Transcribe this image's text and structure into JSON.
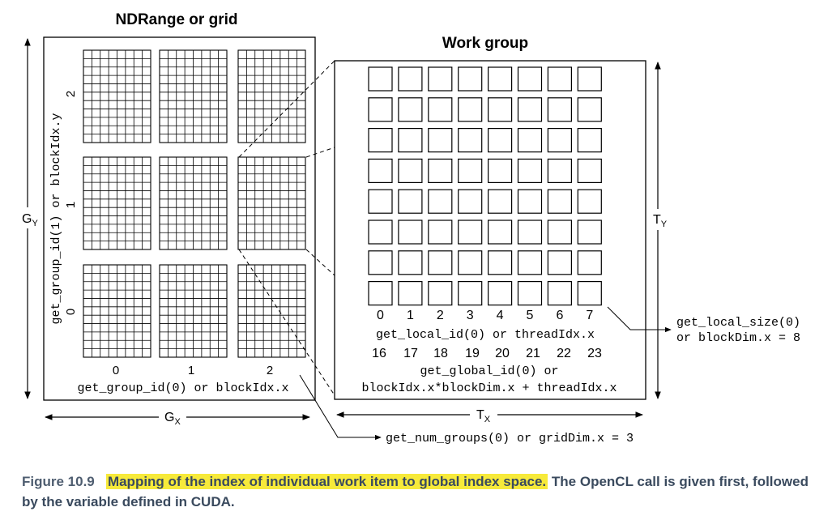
{
  "grid": {
    "title": "NDRange or grid",
    "axis_y_label": "get_group_id(1) or blockIdx.y",
    "row_labels": [
      "0",
      "1",
      "2"
    ],
    "col_labels": [
      "0",
      "1",
      "2"
    ],
    "axis_x_label": "get_group_id(0) or blockIdx.x",
    "gx_label": "G",
    "gx_sub": "X",
    "gy_label": "G",
    "gy_sub": "Y"
  },
  "work_group": {
    "title": "Work group",
    "local_ids": [
      "0",
      "1",
      "2",
      "3",
      "4",
      "5",
      "6",
      "7"
    ],
    "local_id_label": "get_local_id(0) or threadIdx.x",
    "global_ids": [
      "16",
      "17",
      "18",
      "19",
      "20",
      "21",
      "22",
      "23"
    ],
    "global_id_label_1": "get_global_id(0) or",
    "global_id_label_2": "blockIdx.x*blockDim.x + threadIdx.x",
    "tx_label": "T",
    "tx_sub": "X",
    "ty_label": "T",
    "ty_sub": "Y",
    "cells_per_row": 8,
    "cells_per_col": 8
  },
  "annotations": {
    "local_size_1": "get_local_size(0)",
    "local_size_2": "or blockDim.x = 8",
    "num_groups": "get_num_groups(0) or gridDim.x = 3"
  },
  "caption": {
    "figure_label": "Figure 10.9",
    "highlight": "Mapping of the index of individual work item to global index space.",
    "rest": "The OpenCL call is given first, followed by the variable defined in CUDA."
  }
}
